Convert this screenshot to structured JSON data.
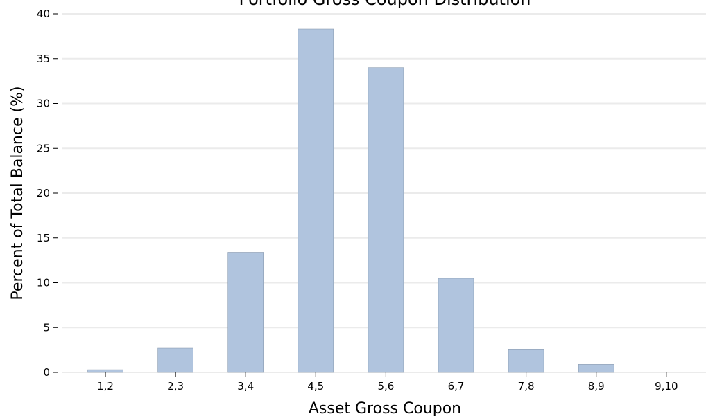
{
  "chart_data": {
    "type": "bar",
    "title": "Portfolio Gross Coupon Distribution",
    "xlabel": "Asset Gross Coupon",
    "ylabel": "Percent of Total Balance (%)",
    "categories": [
      "1,2",
      "2,3",
      "3,4",
      "4,5",
      "5,6",
      "6,7",
      "7,8",
      "8,9",
      "9,10"
    ],
    "values": [
      0.3,
      2.7,
      13.4,
      38.3,
      34.0,
      10.5,
      2.6,
      0.9,
      0.0
    ],
    "ylim": [
      0,
      40
    ],
    "yticks": [
      0,
      5,
      10,
      15,
      20,
      25,
      30,
      35,
      40
    ],
    "grid": "horizontal",
    "bar_color": "#b0c4de",
    "bar_edge_color": "#8a9bb0"
  }
}
